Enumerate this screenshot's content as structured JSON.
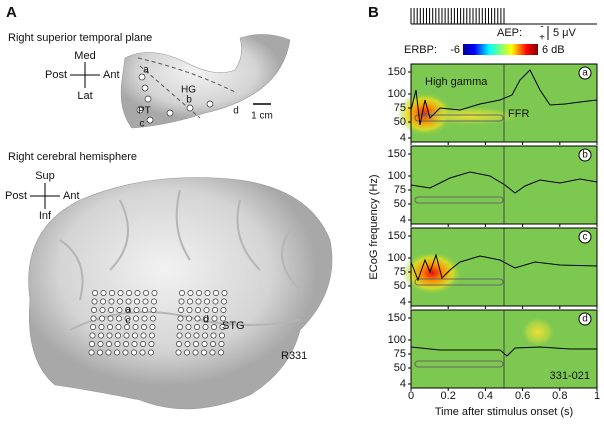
{
  "panel_a": {
    "label": "A",
    "top_title": "Right superior temporal plane",
    "top_orientation": {
      "up": "Med",
      "down": "Lat",
      "left": "Post",
      "right": "Ant"
    },
    "top_labels": {
      "a": "a",
      "hg": "HG",
      "b": "b",
      "d": "d",
      "pt": "PT",
      "c": "c"
    },
    "scale_bar": "1 cm",
    "bottom_title": "Right cerebral hemisphere",
    "bottom_orientation": {
      "up": "Sup",
      "down": "Inf",
      "left": "Post",
      "right": "Ant"
    },
    "bottom_labels": {
      "a": "a",
      "c": "c",
      "d": "d",
      "stg": "STG"
    },
    "subject": "R331"
  },
  "panel_b": {
    "label": "B",
    "aep_label": "AEP:",
    "aep_minus": "-",
    "aep_plus": "+",
    "aep_scale": "5 μV",
    "erbp_label": "ERBP:",
    "erbp_min": "-6",
    "erbp_max": "6 dB",
    "y_label": "ECoG frequency (Hz)",
    "x_label": "Time after stimulus onset (s)",
    "yticks": [
      150,
      100,
      75,
      50,
      4
    ],
    "xticks": [
      0,
      0.2,
      0.4,
      0.6,
      0.8,
      1
    ],
    "panels": [
      {
        "tag": "a",
        "high_gamma": "High gamma",
        "ffr": "FFR"
      },
      {
        "tag": "b"
      },
      {
        "tag": "c"
      },
      {
        "tag": "d",
        "id": "331-021"
      }
    ]
  }
}
